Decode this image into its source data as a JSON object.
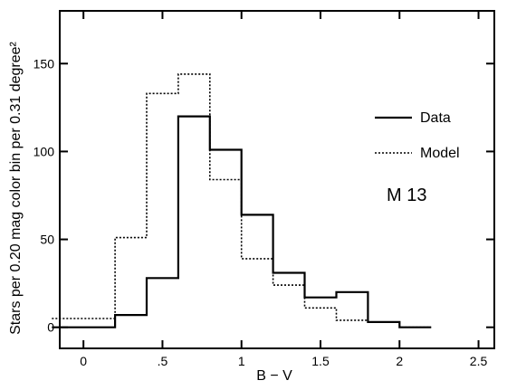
{
  "chart_data": {
    "type": "step",
    "xlabel": "B − V",
    "ylabel": "Stars per 0.20 mag color bin per 0.31 degree²",
    "xlim": [
      -0.15,
      2.6
    ],
    "ylim": [
      -12,
      180
    ],
    "xticks": [
      {
        "value": 0,
        "label": "0"
      },
      {
        "value": 0.5,
        "label": ".5"
      },
      {
        "value": 1,
        "label": "1"
      },
      {
        "value": 1.5,
        "label": "1.5"
      },
      {
        "value": 2,
        "label": "2"
      },
      {
        "value": 2.5,
        "label": "2.5"
      }
    ],
    "yticks": [
      {
        "value": 0,
        "label": "0"
      },
      {
        "value": 50,
        "label": "50"
      },
      {
        "value": 100,
        "label": "100"
      },
      {
        "value": 150,
        "label": "150"
      }
    ],
    "bin_edges": [
      -0.2,
      0.2,
      0.4,
      0.6,
      0.8,
      1.0,
      1.2,
      1.4,
      1.6,
      1.8,
      2.0,
      2.2
    ],
    "series": [
      {
        "name": "Data",
        "style": "solid",
        "values": [
          0,
          7,
          28,
          120,
          101,
          64,
          31,
          17,
          20,
          3,
          0
        ]
      },
      {
        "name": "Model",
        "style": "dotted",
        "values": [
          5,
          51,
          133,
          144,
          84,
          39,
          24,
          11,
          4,
          3,
          0
        ]
      }
    ],
    "legend_position": "right",
    "annotation": "M 13",
    "grid": false
  }
}
